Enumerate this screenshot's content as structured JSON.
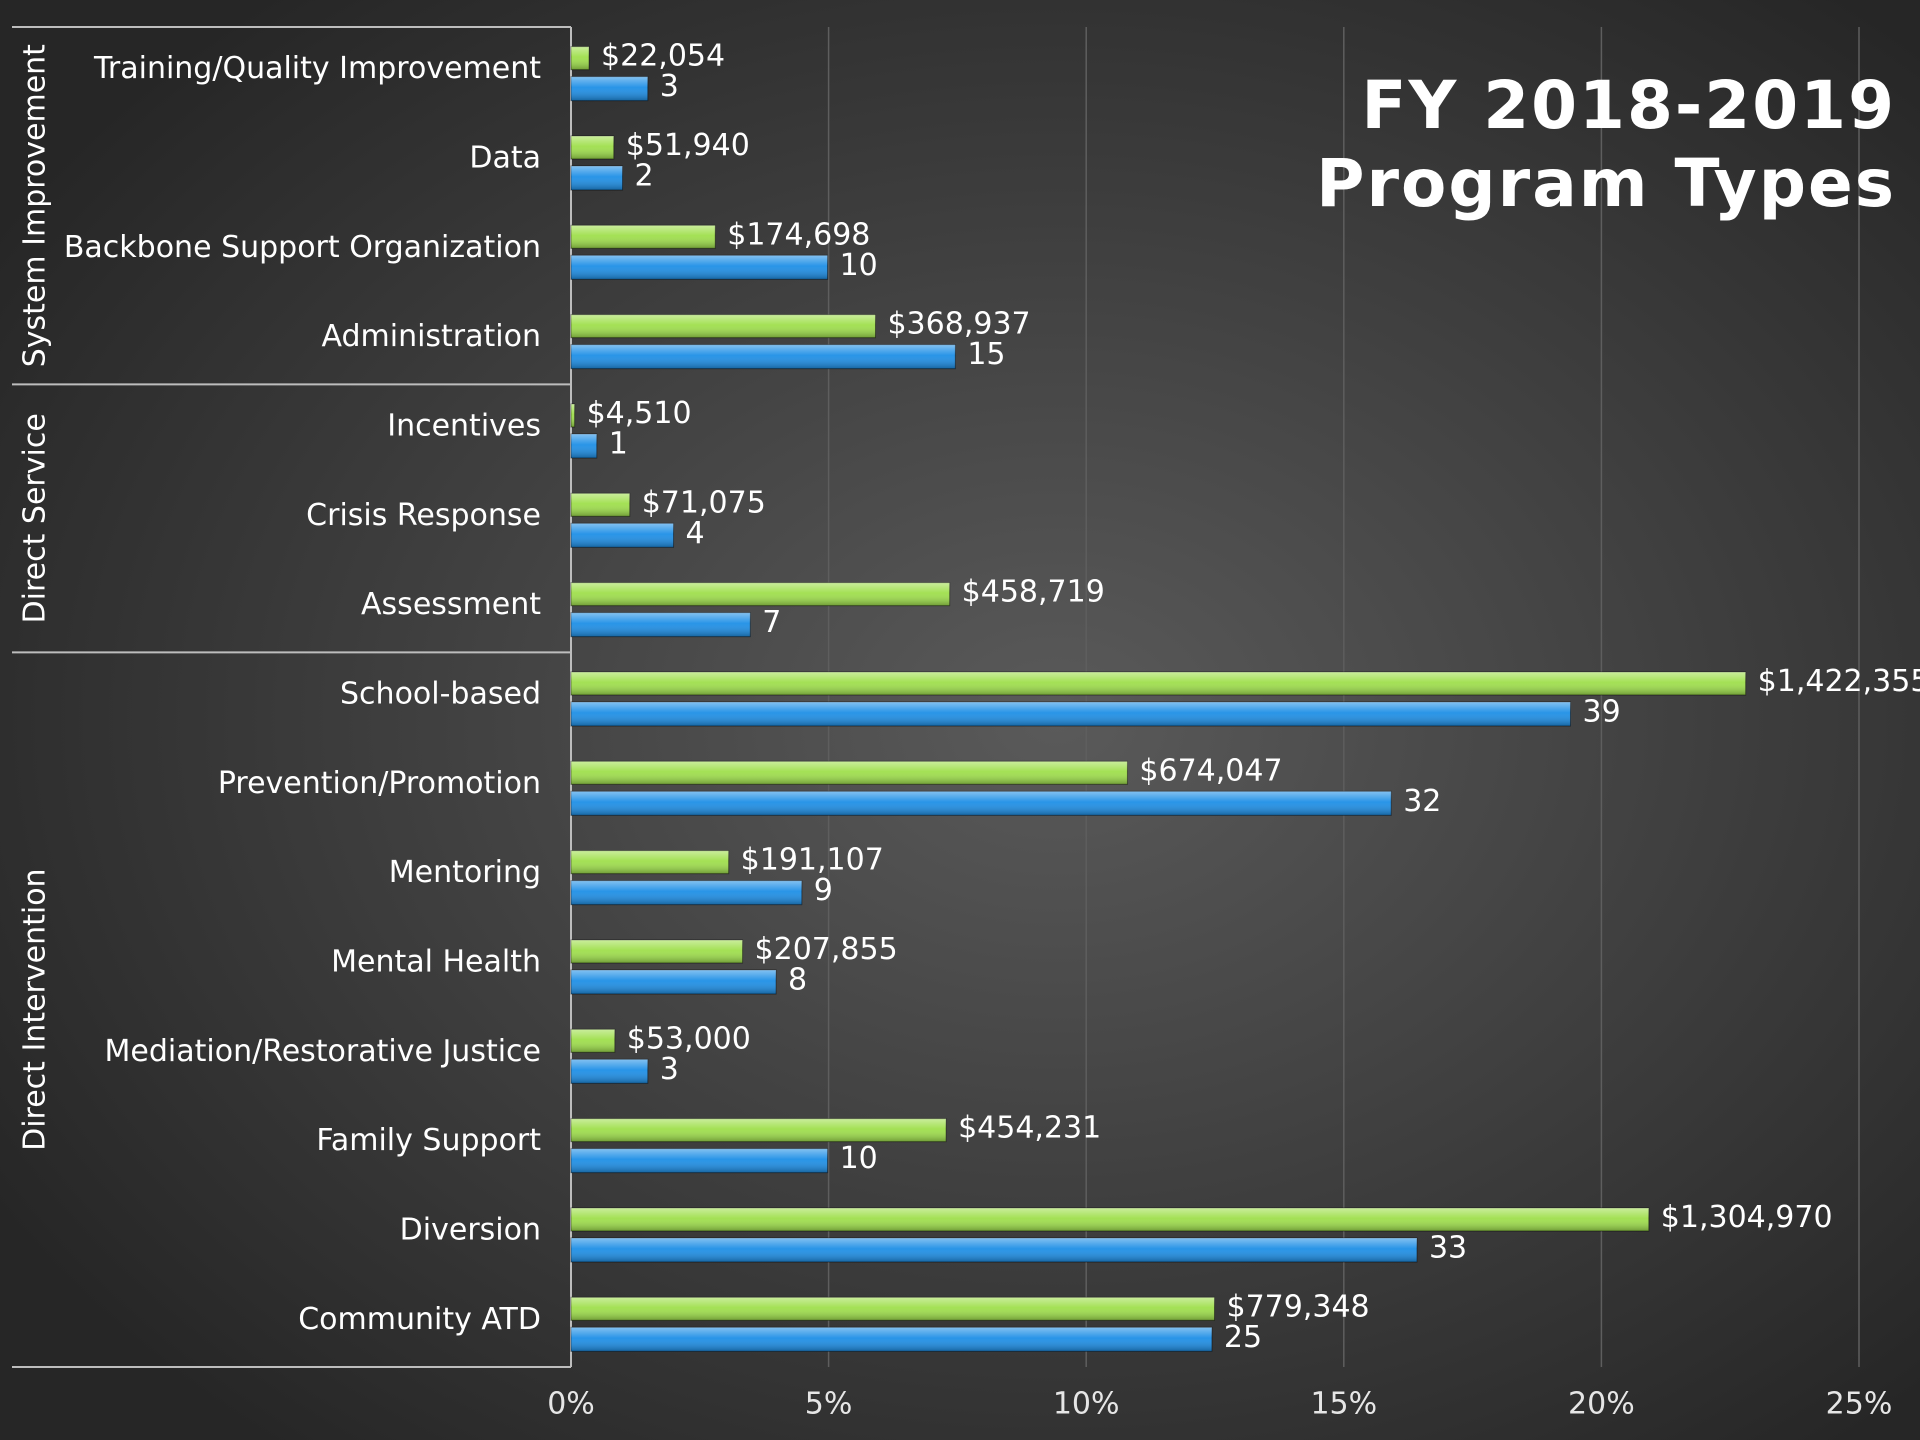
{
  "chart_data": {
    "type": "bar",
    "orientation": "horizontal",
    "title": [
      "FY 2018-2019",
      "Program Types"
    ],
    "groups": [
      {
        "label": "System Improvement",
        "categories": [
          "Training/Quality Improvement",
          "Data",
          "Backbone Support Organization",
          "Administration"
        ]
      },
      {
        "label": "Direct Service",
        "categories": [
          "Incentives",
          "Crisis Response",
          "Assessment"
        ]
      },
      {
        "label": "Direct Intervention",
        "categories": [
          "School-based",
          "Prevention/Promotion",
          "Mentoring",
          "Mental Health",
          "Mediation/Restorative Justice",
          "Family Support",
          "Diversion",
          "Community ATD"
        ]
      }
    ],
    "series": [
      {
        "color": "#9fdf4c",
        "values": [
          0.35,
          0.83,
          2.8,
          5.91,
          0.07,
          1.14,
          7.35,
          22.8,
          10.8,
          3.06,
          3.33,
          0.85,
          7.28,
          20.92,
          12.49
        ],
        "value_labels": [
          "$22,054",
          "$51,940",
          "$174,698",
          "$368,937",
          "$4,510",
          "$71,075",
          "$458,719",
          "$1,422,355",
          "$674,047",
          "$191,107",
          "$207,855",
          "$53,000",
          "$454,231",
          "$1,304,970",
          "$779,348"
        ]
      },
      {
        "color": "#1e8fe6",
        "values": [
          1.49,
          1.0,
          4.98,
          7.46,
          0.5,
          1.99,
          3.48,
          19.4,
          15.92,
          4.48,
          3.98,
          1.49,
          4.98,
          16.42,
          12.44
        ],
        "value_labels": [
          "3",
          "2",
          "10",
          "15",
          "1",
          "4",
          "7",
          "39",
          "32",
          "9",
          "8",
          "3",
          "10",
          "33",
          "25"
        ]
      }
    ],
    "xlim": [
      0,
      25
    ],
    "xticks": [
      {
        "value": 0,
        "label": "0%"
      },
      {
        "value": 5,
        "label": "5%"
      },
      {
        "value": 10,
        "label": "10%"
      },
      {
        "value": 15,
        "label": "15%"
      },
      {
        "value": 20,
        "label": "20%"
      },
      {
        "value": 25,
        "label": "25%"
      }
    ],
    "grid": true
  }
}
